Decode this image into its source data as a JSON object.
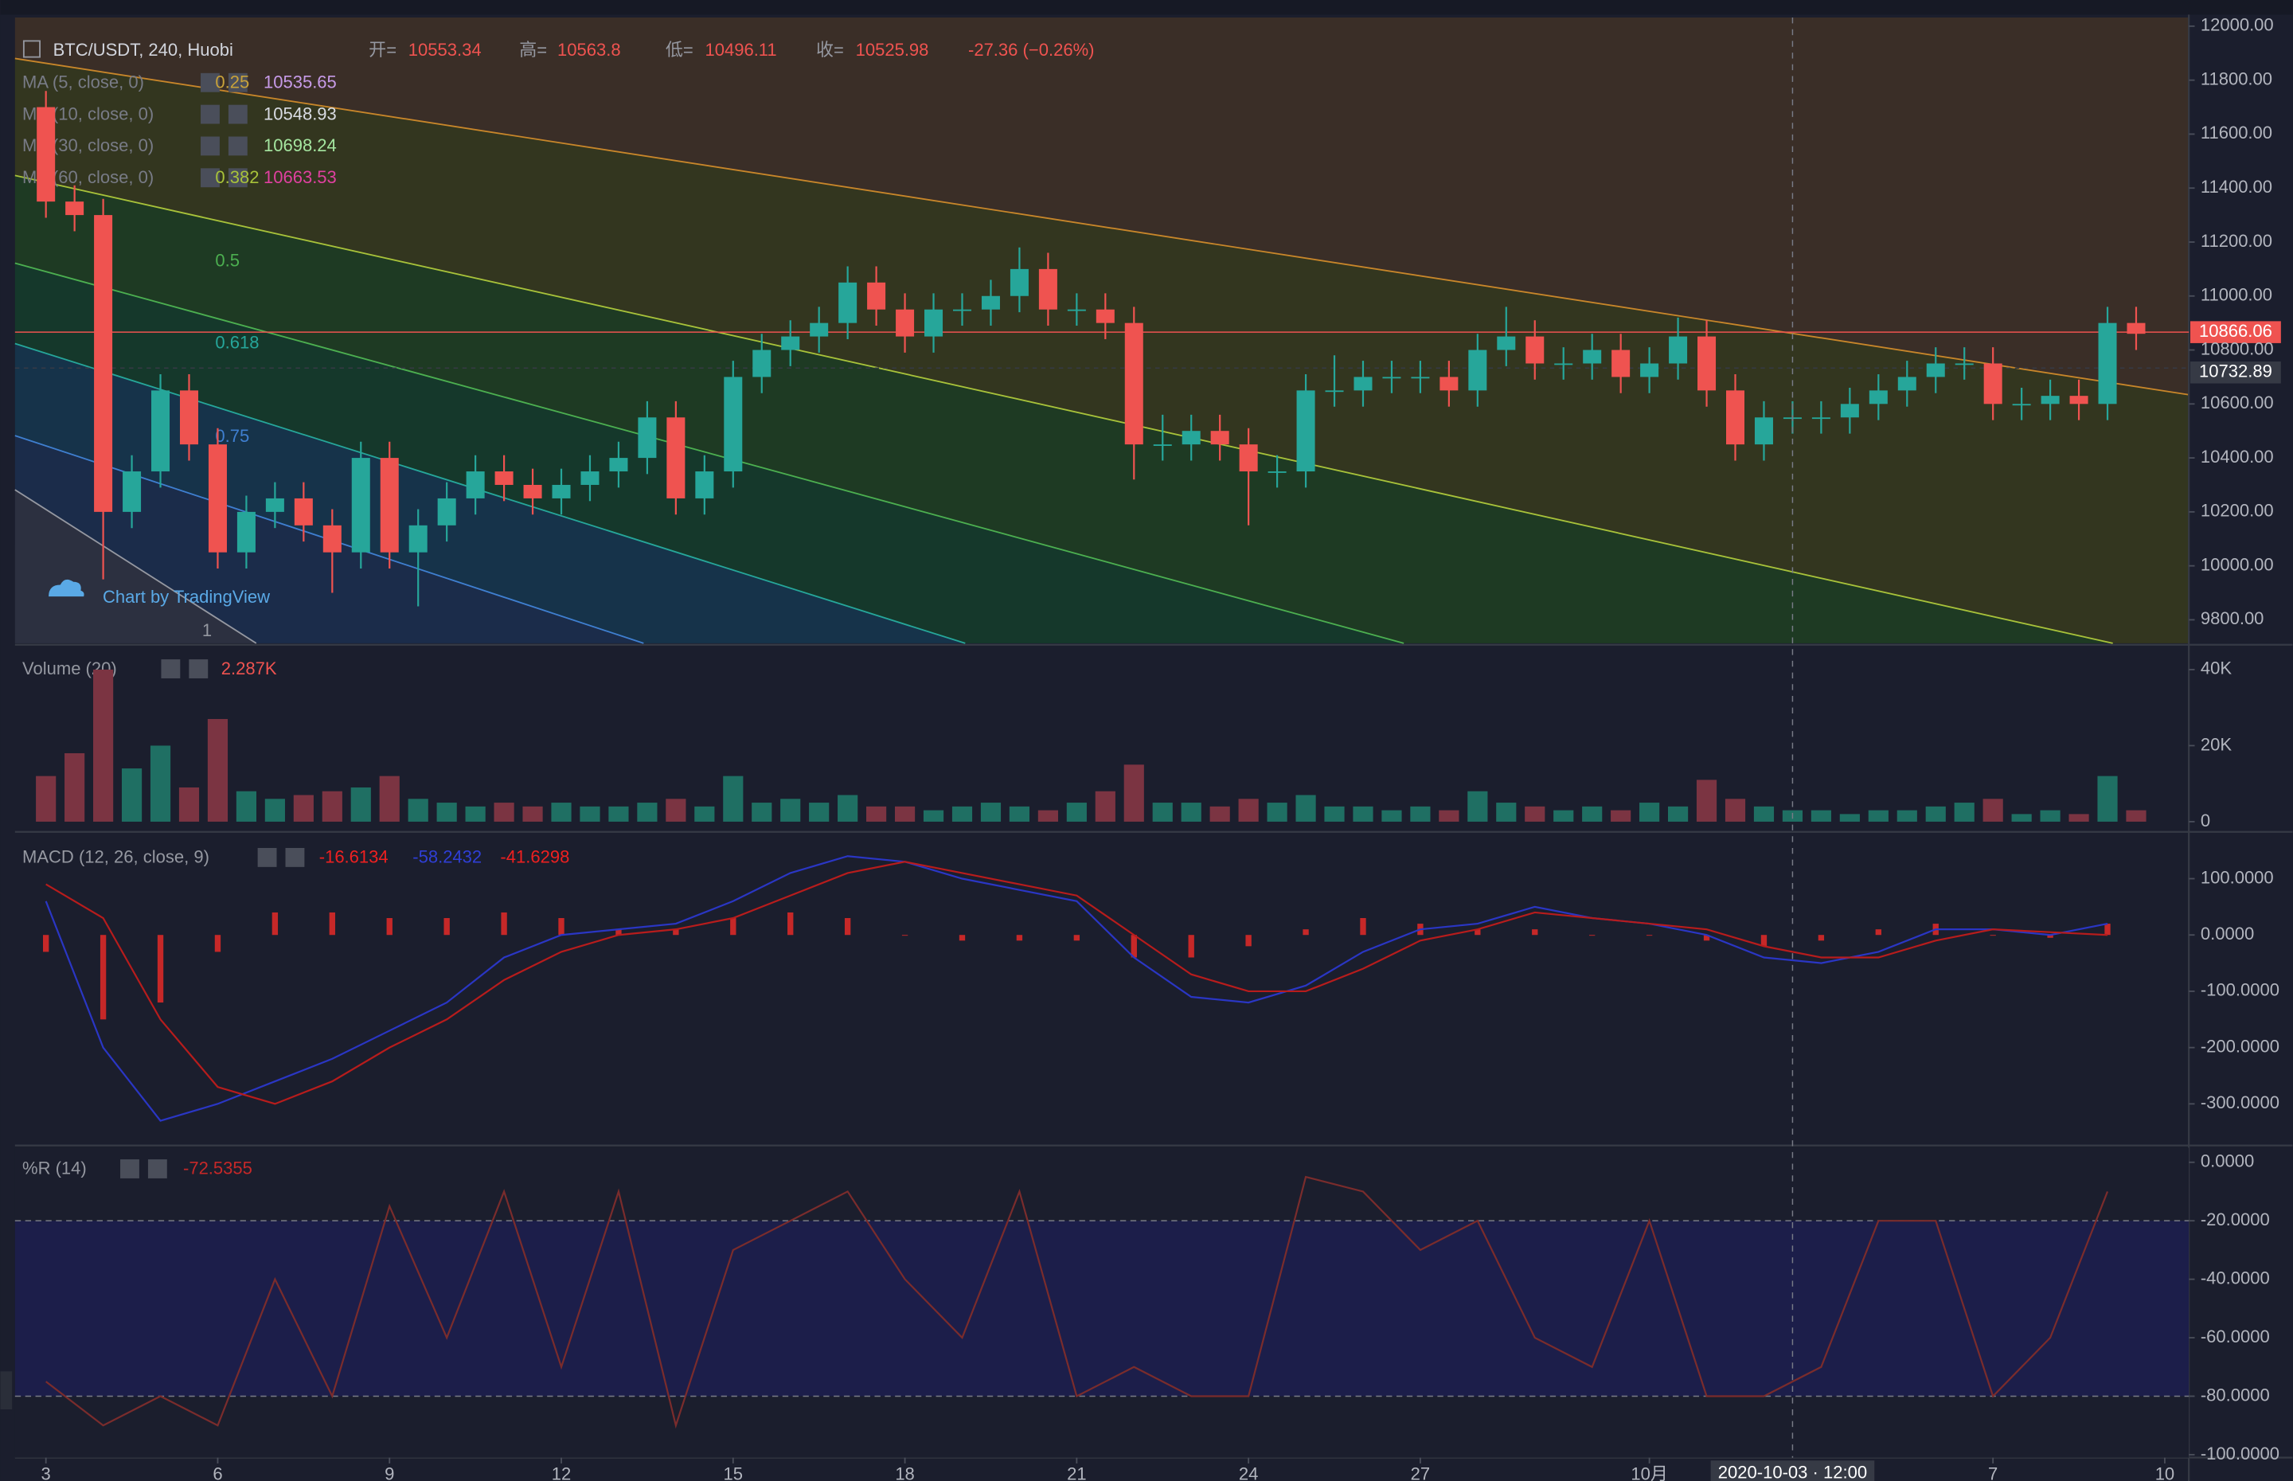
{
  "chart_data": [
    {
      "type": "candlestick",
      "title": "BTC/USDT, 240, Huobi",
      "stats": [
        {
          "name": "开=",
          "value": 10553.34
        },
        {
          "name": "高=",
          "value": 10563.8
        },
        {
          "name": "低=",
          "value": 10496.11
        },
        {
          "name": "收=",
          "value": 10525.98
        }
      ],
      "change": "-27.36 (−0.26%)",
      "indicators": [
        {
          "name": "MA (5, close, 0)",
          "value": 10535.65,
          "color": "#c79be8"
        },
        {
          "name": "MA (10, close, 0)",
          "value": 10548.93,
          "color": "#d9dce3"
        },
        {
          "name": "MA (30, close, 0)",
          "value": 10698.24,
          "color": "#a5e6a0"
        },
        {
          "name": "MA (60, close, 0)",
          "value": 10663.53,
          "color": "#e040a0"
        }
      ],
      "fib_levels": [
        {
          "level": 0.25,
          "color": "#c8a23a"
        },
        {
          "level": 0.382,
          "color": "#a8c23a"
        },
        {
          "level": 0.5,
          "color": "#4caf50"
        },
        {
          "level": 0.618,
          "color": "#26a69a"
        },
        {
          "level": 0.75,
          "color": "#3f7fd0"
        },
        {
          "level": 1,
          "color": "#9598a1"
        }
      ],
      "price_lines": [
        {
          "value": 10866.06,
          "color": "#ef5350"
        },
        {
          "value": 10732.89,
          "color": "#363a45"
        }
      ],
      "watermark": "Chart by TradingView",
      "up_color": "#26a69a",
      "down_color": "#ef5350",
      "x": [
        3,
        3.5,
        4,
        4.5,
        5,
        5.5,
        6,
        6.5,
        7,
        7.5,
        8,
        8.5,
        9,
        9.5,
        10,
        10.5,
        11,
        11.5,
        12,
        12.5,
        13,
        13.5,
        14,
        14.5,
        15,
        15.5,
        16,
        16.5,
        17,
        17.5,
        18,
        18.5,
        19,
        19.5,
        20,
        20.5,
        21,
        21.5,
        22,
        22.5,
        23,
        23.5,
        24,
        24.5,
        25,
        25.5,
        26,
        26.5,
        27,
        27.5,
        28,
        28.5,
        29,
        29.5,
        30,
        30.5,
        31,
        31.5,
        32,
        32.5,
        33,
        33.5,
        34,
        34.5,
        35,
        35.5,
        36,
        36.5,
        37,
        37.5,
        38,
        38.5,
        39,
        39.5
      ],
      "open": [
        11700,
        11350,
        11300,
        10200,
        10350,
        10650,
        10450,
        10050,
        10200,
        10250,
        10150,
        10050,
        10400,
        10050,
        10150,
        10250,
        10350,
        10300,
        10250,
        10300,
        10350,
        10400,
        10550,
        10250,
        10350,
        10700,
        10800,
        10850,
        10900,
        11050,
        10950,
        10850,
        10950,
        10950,
        11000,
        11100,
        10950,
        10950,
        10900,
        10450,
        10450,
        10500,
        10450,
        10350,
        10350,
        10650,
        10650,
        10700,
        10700,
        10700,
        10650,
        10800,
        10850,
        10750,
        10750,
        10800,
        10700,
        10750,
        10850,
        10650,
        10450,
        10550,
        10550,
        10550,
        10600,
        10650,
        10700,
        10750,
        10750,
        10600,
        10600,
        10630,
        10600,
        10900
      ],
      "high": [
        11760,
        11410,
        11360,
        10410,
        10710,
        10710,
        10510,
        10260,
        10310,
        10310,
        10210,
        10460,
        10460,
        10210,
        10310,
        10410,
        10410,
        10360,
        10360,
        10410,
        10460,
        10610,
        10610,
        10410,
        10760,
        10860,
        10910,
        10960,
        11110,
        11110,
        11010,
        11010,
        11010,
        11060,
        11180,
        11160,
        11010,
        11010,
        10960,
        10560,
        10560,
        10560,
        10510,
        10410,
        10710,
        10780,
        10760,
        10760,
        10760,
        10760,
        10860,
        10960,
        10910,
        10810,
        10860,
        10860,
        10810,
        10920,
        10910,
        10710,
        10610,
        10610,
        10610,
        10660,
        10710,
        10760,
        10810,
        10810,
        10810,
        10660,
        10690,
        10690,
        10960,
        10960
      ],
      "low": [
        11290,
        11240,
        9950,
        10140,
        10290,
        10390,
        9990,
        9990,
        10140,
        10090,
        9900,
        9990,
        9990,
        9850,
        10090,
        10190,
        10240,
        10190,
        10190,
        10240,
        10290,
        10340,
        10190,
        10190,
        10290,
        10640,
        10740,
        10790,
        10840,
        10890,
        10790,
        10790,
        10890,
        10890,
        10940,
        10890,
        10890,
        10840,
        10320,
        10390,
        10390,
        10390,
        10150,
        10290,
        10290,
        10590,
        10590,
        10640,
        10640,
        10590,
        10590,
        10740,
        10690,
        10690,
        10690,
        10640,
        10640,
        10690,
        10590,
        10390,
        10390,
        10490,
        10490,
        10490,
        10540,
        10590,
        10640,
        10690,
        10540,
        10540,
        10540,
        10540,
        10540,
        10800
      ],
      "close": [
        11350,
        11300,
        10200,
        10350,
        10650,
        10450,
        10050,
        10200,
        10250,
        10150,
        10050,
        10400,
        10050,
        10150,
        10250,
        10350,
        10300,
        10250,
        10300,
        10350,
        10400,
        10550,
        10250,
        10350,
        10700,
        10800,
        10850,
        10900,
        11050,
        10950,
        10850,
        10950,
        10950,
        11000,
        11100,
        10950,
        10950,
        10900,
        10450,
        10450,
        10500,
        10450,
        10350,
        10350,
        10650,
        10650,
        10700,
        10700,
        10700,
        10650,
        10800,
        10850,
        10750,
        10750,
        10800,
        10700,
        10750,
        10850,
        10650,
        10450,
        10550,
        10550,
        10550,
        10600,
        10650,
        10700,
        10750,
        10750,
        10600,
        10600,
        10630,
        10600,
        10900,
        10860
      ],
      "xlim": [
        2.46,
        40.42
      ],
      "ylim": [
        9713,
        12032
      ],
      "yticks": [
        {
          "value": 12000,
          "label": "12000.00"
        },
        {
          "value": 11800,
          "label": "11800.00"
        },
        {
          "value": 11600,
          "label": "11600.00"
        },
        {
          "value": 11400,
          "label": "11400.00"
        },
        {
          "value": 11200,
          "label": "11200.00"
        },
        {
          "value": 11000,
          "label": "11000.00"
        },
        {
          "value": 10800,
          "label": "10800.00"
        },
        {
          "value": 10600,
          "label": "10600.00"
        },
        {
          "value": 10400,
          "label": "10400.00"
        },
        {
          "value": 10200,
          "label": "10200.00"
        },
        {
          "value": 10000,
          "label": "10000.00"
        },
        {
          "value": 9800,
          "label": "9800.00"
        }
      ]
    },
    {
      "type": "bar",
      "title": "Volume (20)",
      "legend_value": "2.287K",
      "legend_color": "#ef5350",
      "up_color": "#1f6f63",
      "down_color": "#7b3442",
      "x": [
        3,
        3.5,
        4,
        4.5,
        5,
        5.5,
        6,
        6.5,
        7,
        7.5,
        8,
        8.5,
        9,
        9.5,
        10,
        10.5,
        11,
        11.5,
        12,
        12.5,
        13,
        13.5,
        14,
        14.5,
        15,
        15.5,
        16,
        16.5,
        17,
        17.5,
        18,
        18.5,
        19,
        19.5,
        20,
        20.5,
        21,
        21.5,
        22,
        22.5,
        23,
        23.5,
        24,
        24.5,
        25,
        25.5,
        26,
        26.5,
        27,
        27.5,
        28,
        28.5,
        29,
        29.5,
        30,
        30.5,
        31,
        31.5,
        32,
        32.5,
        33,
        33.5,
        34,
        34.5,
        35,
        35.5,
        36,
        36.5,
        37,
        37.5,
        38,
        38.5,
        39,
        39.5
      ],
      "values": [
        12000,
        18000,
        40000,
        14000,
        20000,
        9000,
        27000,
        8000,
        6000,
        7000,
        8000,
        9000,
        12000,
        6000,
        5000,
        4000,
        5000,
        4000,
        5000,
        4000,
        4000,
        5000,
        6000,
        4000,
        12000,
        5000,
        6000,
        5000,
        7000,
        4000,
        4000,
        3000,
        4000,
        5000,
        4000,
        3000,
        5000,
        8000,
        15000,
        5000,
        5000,
        4000,
        6000,
        5000,
        7000,
        4000,
        4000,
        3000,
        4000,
        3000,
        8000,
        5000,
        4000,
        3000,
        4000,
        3000,
        5000,
        4000,
        11000,
        6000,
        4000,
        3000,
        3000,
        2000,
        3000,
        3000,
        4000,
        5000,
        6000,
        2000,
        3000,
        2000,
        12000,
        3000
      ],
      "xlim": [
        2.46,
        40.42
      ],
      "ylim": [
        -2300,
        46150
      ],
      "yticks": [
        0,
        {
          "value": 20000,
          "label": "20K"
        },
        {
          "value": 40000,
          "label": "40K"
        }
      ]
    },
    {
      "type": "macd",
      "title": "MACD (12, 26, close, 9)",
      "legend_values": [
        {
          "value": -16.6134,
          "color": "#ef2020"
        },
        {
          "value": -58.2432,
          "color": "#2f3fd6"
        },
        {
          "value": -41.6298,
          "color": "#ef2020"
        }
      ],
      "x": [
        3,
        4,
        5,
        6,
        7,
        8,
        9,
        10,
        11,
        12,
        13,
        14,
        15,
        16,
        17,
        18,
        19,
        20,
        21,
        22,
        23,
        24,
        25,
        26,
        27,
        28,
        29,
        30,
        31,
        32,
        33,
        34,
        35,
        36,
        37,
        38,
        39
      ],
      "histogram": {
        "color": "#c62828",
        "values": [
          -30,
          -150,
          -120,
          -30,
          40,
          40,
          30,
          30,
          40,
          30,
          10,
          10,
          30,
          40,
          30,
          0,
          -10,
          -10,
          -10,
          -40,
          -40,
          -20,
          10,
          30,
          20,
          10,
          10,
          0,
          0,
          -10,
          -20,
          -10,
          10,
          20,
          0,
          -5,
          20
        ]
      },
      "series": [
        {
          "color": "#2a36c4",
          "values": [
            60,
            -200,
            -330,
            -300,
            -260,
            -220,
            -170,
            -120,
            -40,
            0,
            10,
            20,
            60,
            110,
            140,
            130,
            100,
            80,
            60,
            -40,
            -110,
            -120,
            -90,
            -30,
            10,
            20,
            50,
            30,
            20,
            0,
            -40,
            -50,
            -30,
            10,
            10,
            0,
            20
          ]
        },
        {
          "color": "#b71c1c",
          "values": [
            90,
            30,
            -150,
            -270,
            -300,
            -260,
            -200,
            -150,
            -80,
            -30,
            0,
            10,
            30,
            70,
            110,
            130,
            110,
            90,
            70,
            0,
            -70,
            -100,
            -100,
            -60,
            -10,
            10,
            40,
            30,
            20,
            10,
            -20,
            -40,
            -40,
            -10,
            10,
            5,
            0
          ]
        }
      ],
      "xlim": [
        2.46,
        40.42
      ],
      "ylim": [
        -370,
        180.5
      ],
      "yticks": [
        {
          "value": 100,
          "label": "100.0000"
        },
        {
          "value": 0,
          "label": "0.0000"
        },
        {
          "value": -100,
          "label": "-100.0000"
        },
        {
          "value": -200,
          "label": "-200.0000"
        },
        {
          "value": -300,
          "label": "-300.0000"
        }
      ]
    },
    {
      "type": "line",
      "title": "%R (14)",
      "legend_value": -72.5355,
      "color": "#7a2c2c",
      "legend_color": "#c62828",
      "levels": [
        -20,
        -80
      ],
      "band_color": "#1c1e4a",
      "x": [
        3,
        4,
        5,
        6,
        7,
        8,
        9,
        10,
        11,
        12,
        13,
        14,
        15,
        16,
        17,
        18,
        19,
        20,
        21,
        22,
        23,
        24,
        25,
        26,
        27,
        28,
        29,
        30,
        31,
        32,
        33,
        34,
        35,
        36,
        37,
        38,
        39
      ],
      "values": [
        -75,
        -90,
        -80,
        -90,
        -40,
        -80,
        -15,
        -60,
        -10,
        -70,
        -10,
        -90,
        -30,
        -20,
        -10,
        -40,
        -60,
        -10,
        -80,
        -70,
        -80,
        -80,
        -5,
        -10,
        -30,
        -20,
        -60,
        -70,
        -20,
        -80,
        -80,
        -70,
        -20,
        -20,
        -80,
        -60,
        -10
      ],
      "xlim": [
        2.46,
        40.42
      ],
      "ylim": [
        -101,
        5
      ],
      "yticks": [
        {
          "value": 0,
          "label": "0.0000"
        },
        {
          "value": -20,
          "label": "-20.0000"
        },
        {
          "value": -40,
          "label": "-40.0000"
        },
        {
          "value": -60,
          "label": "-60.0000"
        },
        {
          "value": -80,
          "label": "-80.0000"
        },
        {
          "value": -100,
          "label": "-100.0000"
        }
      ],
      "xticks": [
        3,
        6,
        9,
        12,
        15,
        18,
        21,
        24,
        27,
        {
          "value": 31,
          "label": "10月"
        },
        {
          "value": 37,
          "label": "7"
        },
        {
          "value": 40,
          "label": "10"
        }
      ],
      "crosshair": {
        "x": 33.5,
        "label": "2020-10-03 · 12:00"
      }
    }
  ]
}
